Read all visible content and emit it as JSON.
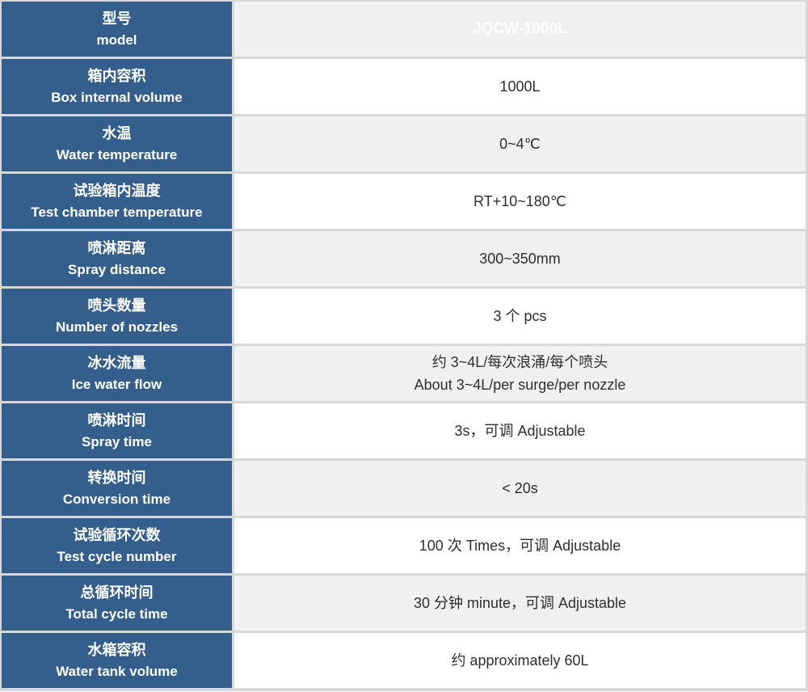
{
  "colors": {
    "label_column_blue": "#345F8D",
    "alt_row_gray": "#F0F0F0",
    "row_white": "#FFFFFF",
    "grid_line": "#D6D7DA",
    "label_text": "#FFFFFF",
    "value_text": "#2E2E2E"
  },
  "spec_table": {
    "header": {
      "label_zh": "型号",
      "label_en": "model",
      "value": "JQCW-1000L"
    },
    "rows": [
      {
        "label_zh": "箱内容积",
        "label_en": "Box internal volume",
        "value": "1000L"
      },
      {
        "label_zh": "水温",
        "label_en": "Water temperature",
        "value": "0~4℃"
      },
      {
        "label_zh": "试验箱内温度",
        "label_en": "Test chamber temperature",
        "value": "RT+10~180℃"
      },
      {
        "label_zh": "喷淋距离",
        "label_en": "Spray distance",
        "value": "300~350mm"
      },
      {
        "label_zh": "喷头数量",
        "label_en": "Number of nozzles",
        "value": "3 个  pcs"
      },
      {
        "label_zh": "冰水流量",
        "label_en": "Ice water flow",
        "value": "约 3~4L/每次浪涌/每个喷头\nAbout 3~4L/per surge/per nozzle"
      },
      {
        "label_zh": "喷淋时间",
        "label_en": "Spray time",
        "value": "3s，可调  Adjustable"
      },
      {
        "label_zh": "转换时间",
        "label_en": "Conversion time",
        "value": "< 20s"
      },
      {
        "label_zh": "试验循环次数",
        "label_en": "Test cycle number",
        "value": "100 次  Times，可调  Adjustable"
      },
      {
        "label_zh": "总循环时间",
        "label_en": "Total cycle time",
        "value": "30 分钟  minute，可调  Adjustable"
      },
      {
        "label_zh": "水箱容积",
        "label_en": "Water tank volume",
        "value": "约 approximately 60L"
      }
    ]
  }
}
